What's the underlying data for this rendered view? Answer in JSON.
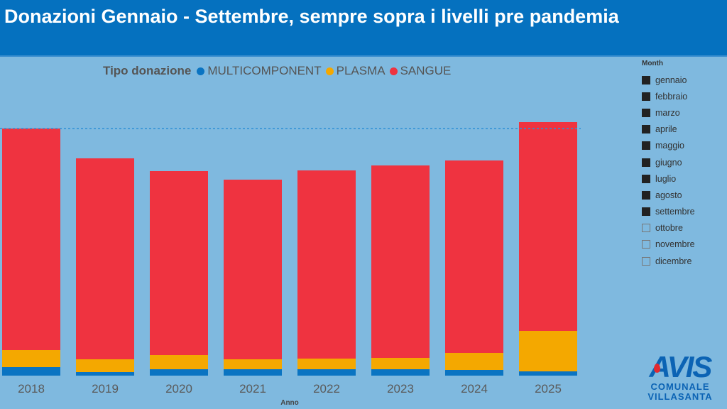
{
  "header": {
    "title": "Donazioni Gennaio - Settembre, sempre sopra i livelli pre pandemia"
  },
  "chart_data": {
    "type": "bar",
    "stacked": true,
    "title": "",
    "xlabel": "Anno",
    "ylabel": "",
    "legend_title": "Tipo donazione",
    "legend_position": "top",
    "categories": [
      "2018",
      "2019",
      "2020",
      "2021",
      "2022",
      "2023",
      "2024",
      "2025"
    ],
    "series": [
      {
        "name": "MULTICOMPONENT",
        "color": "#0a74c2",
        "values": [
          12,
          5,
          9,
          9,
          9,
          9,
          8,
          6
        ]
      },
      {
        "name": "PLASMA",
        "color": "#f4a800",
        "values": [
          24,
          18,
          20,
          14,
          15,
          16,
          24,
          57
        ]
      },
      {
        "name": "SANGUE",
        "color": "#ef3340",
        "values": [
          312,
          283,
          259,
          253,
          265,
          271,
          271,
          294
        ]
      }
    ],
    "reference_line": {
      "value": 348,
      "style": "dotted"
    },
    "ylim": [
      0,
      360
    ],
    "grid": false,
    "note": "values are relative (no y-axis shown)"
  },
  "slicer": {
    "title": "Month",
    "items": [
      {
        "label": "gennaio",
        "checked": true
      },
      {
        "label": "febbraio",
        "checked": true
      },
      {
        "label": "marzo",
        "checked": true
      },
      {
        "label": "aprile",
        "checked": true
      },
      {
        "label": "maggio",
        "checked": true
      },
      {
        "label": "giugno",
        "checked": true
      },
      {
        "label": "luglio",
        "checked": true
      },
      {
        "label": "agosto",
        "checked": true
      },
      {
        "label": "settembre",
        "checked": true
      },
      {
        "label": "ottobre",
        "checked": false
      },
      {
        "label": "novembre",
        "checked": false
      },
      {
        "label": "dicembre",
        "checked": false
      }
    ]
  },
  "logo": {
    "name": "AVIS",
    "line1": "COMUNALE",
    "line2": "VILLASANTA"
  }
}
